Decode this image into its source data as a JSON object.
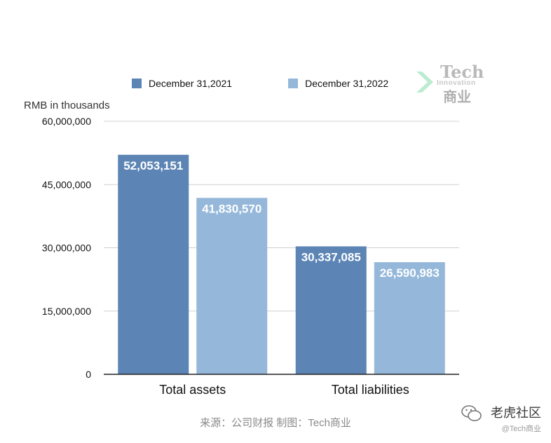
{
  "chart_data": {
    "type": "bar",
    "categories": [
      "Total assets",
      "Total liabilities"
    ],
    "series": [
      {
        "name": "December 31,2021",
        "values": [
          52053151,
          30337085
        ],
        "labels": [
          "52,053,151",
          "30,337,085"
        ],
        "color": "#5c85b5"
      },
      {
        "name": "December 31,2022",
        "values": [
          41830570,
          26590983
        ],
        "labels": [
          "41,830,570",
          "26,590,983"
        ],
        "color": "#95b8da"
      }
    ],
    "ylabel": "RMB in thousands",
    "ylim": [
      0,
      60000000
    ],
    "yticks": [
      0,
      15000000,
      30000000,
      45000000,
      60000000
    ],
    "ytick_labels": [
      "0",
      "15,000,000",
      "30,000,000",
      "45,000,000",
      "60,000,000"
    ],
    "grid": true,
    "legend": "top"
  },
  "logo": {
    "line1": "Tech",
    "line2": "Innovation",
    "line3": "商业"
  },
  "source_text": "来源：公司财报 制图：Tech商业",
  "watermark": {
    "line1": "老虎社区",
    "line2": "@Tech商业",
    "overlay": "Tech商业"
  },
  "colors": {
    "grid": "#d0d0d0",
    "axis": "#222222",
    "source": "#8a8a8a"
  }
}
